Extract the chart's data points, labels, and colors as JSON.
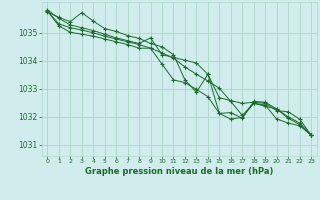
{
  "background_color": "#d0ecec",
  "grid_color": "#b0d8cc",
  "line_color": "#1a6b2a",
  "marker_color": "#1a6b2a",
  "text_color": "#1a6b2a",
  "xlabel": "Graphe pression niveau de la mer (hPa)",
  "xlim": [
    -0.5,
    23.5
  ],
  "ylim": [
    1030.6,
    1036.1
  ],
  "yticks": [
    1031,
    1032,
    1033,
    1034,
    1035
  ],
  "xticks": [
    0,
    1,
    2,
    3,
    4,
    5,
    6,
    7,
    8,
    9,
    10,
    11,
    12,
    13,
    14,
    15,
    16,
    17,
    18,
    19,
    20,
    21,
    22,
    23
  ],
  "series": [
    [
      1035.75,
      1035.55,
      1035.4,
      1035.72,
      1035.42,
      1035.15,
      1035.05,
      1034.9,
      1034.8,
      1034.62,
      1034.5,
      1034.22,
      1033.32,
      1032.88,
      1033.52,
      1032.12,
      1032.15,
      1031.95,
      1032.55,
      1032.52,
      1032.28,
      1031.95,
      1031.72,
      1031.35
    ],
    [
      1035.78,
      1035.32,
      1035.18,
      1035.1,
      1035.0,
      1034.88,
      1034.78,
      1034.68,
      1034.58,
      1034.45,
      1034.28,
      1034.1,
      1033.78,
      1033.52,
      1033.28,
      1033.02,
      1032.55,
      1032.05,
      1032.48,
      1032.38,
      1032.28,
      1032.0,
      1031.78,
      1031.35
    ],
    [
      1035.82,
      1035.52,
      1035.28,
      1035.18,
      1035.08,
      1034.95,
      1034.82,
      1034.72,
      1034.62,
      1034.82,
      1034.22,
      1034.12,
      1034.02,
      1033.92,
      1033.52,
      1032.68,
      1032.58,
      1032.48,
      1032.52,
      1032.48,
      1032.22,
      1032.18,
      1031.92,
      1031.35
    ],
    [
      1035.78,
      1035.25,
      1035.02,
      1034.95,
      1034.88,
      1034.78,
      1034.68,
      1034.58,
      1034.45,
      1034.45,
      1033.88,
      1033.32,
      1033.22,
      1032.98,
      1032.72,
      1032.12,
      1031.92,
      1031.98,
      1032.48,
      1032.42,
      1031.92,
      1031.78,
      1031.68,
      1031.35
    ]
  ]
}
